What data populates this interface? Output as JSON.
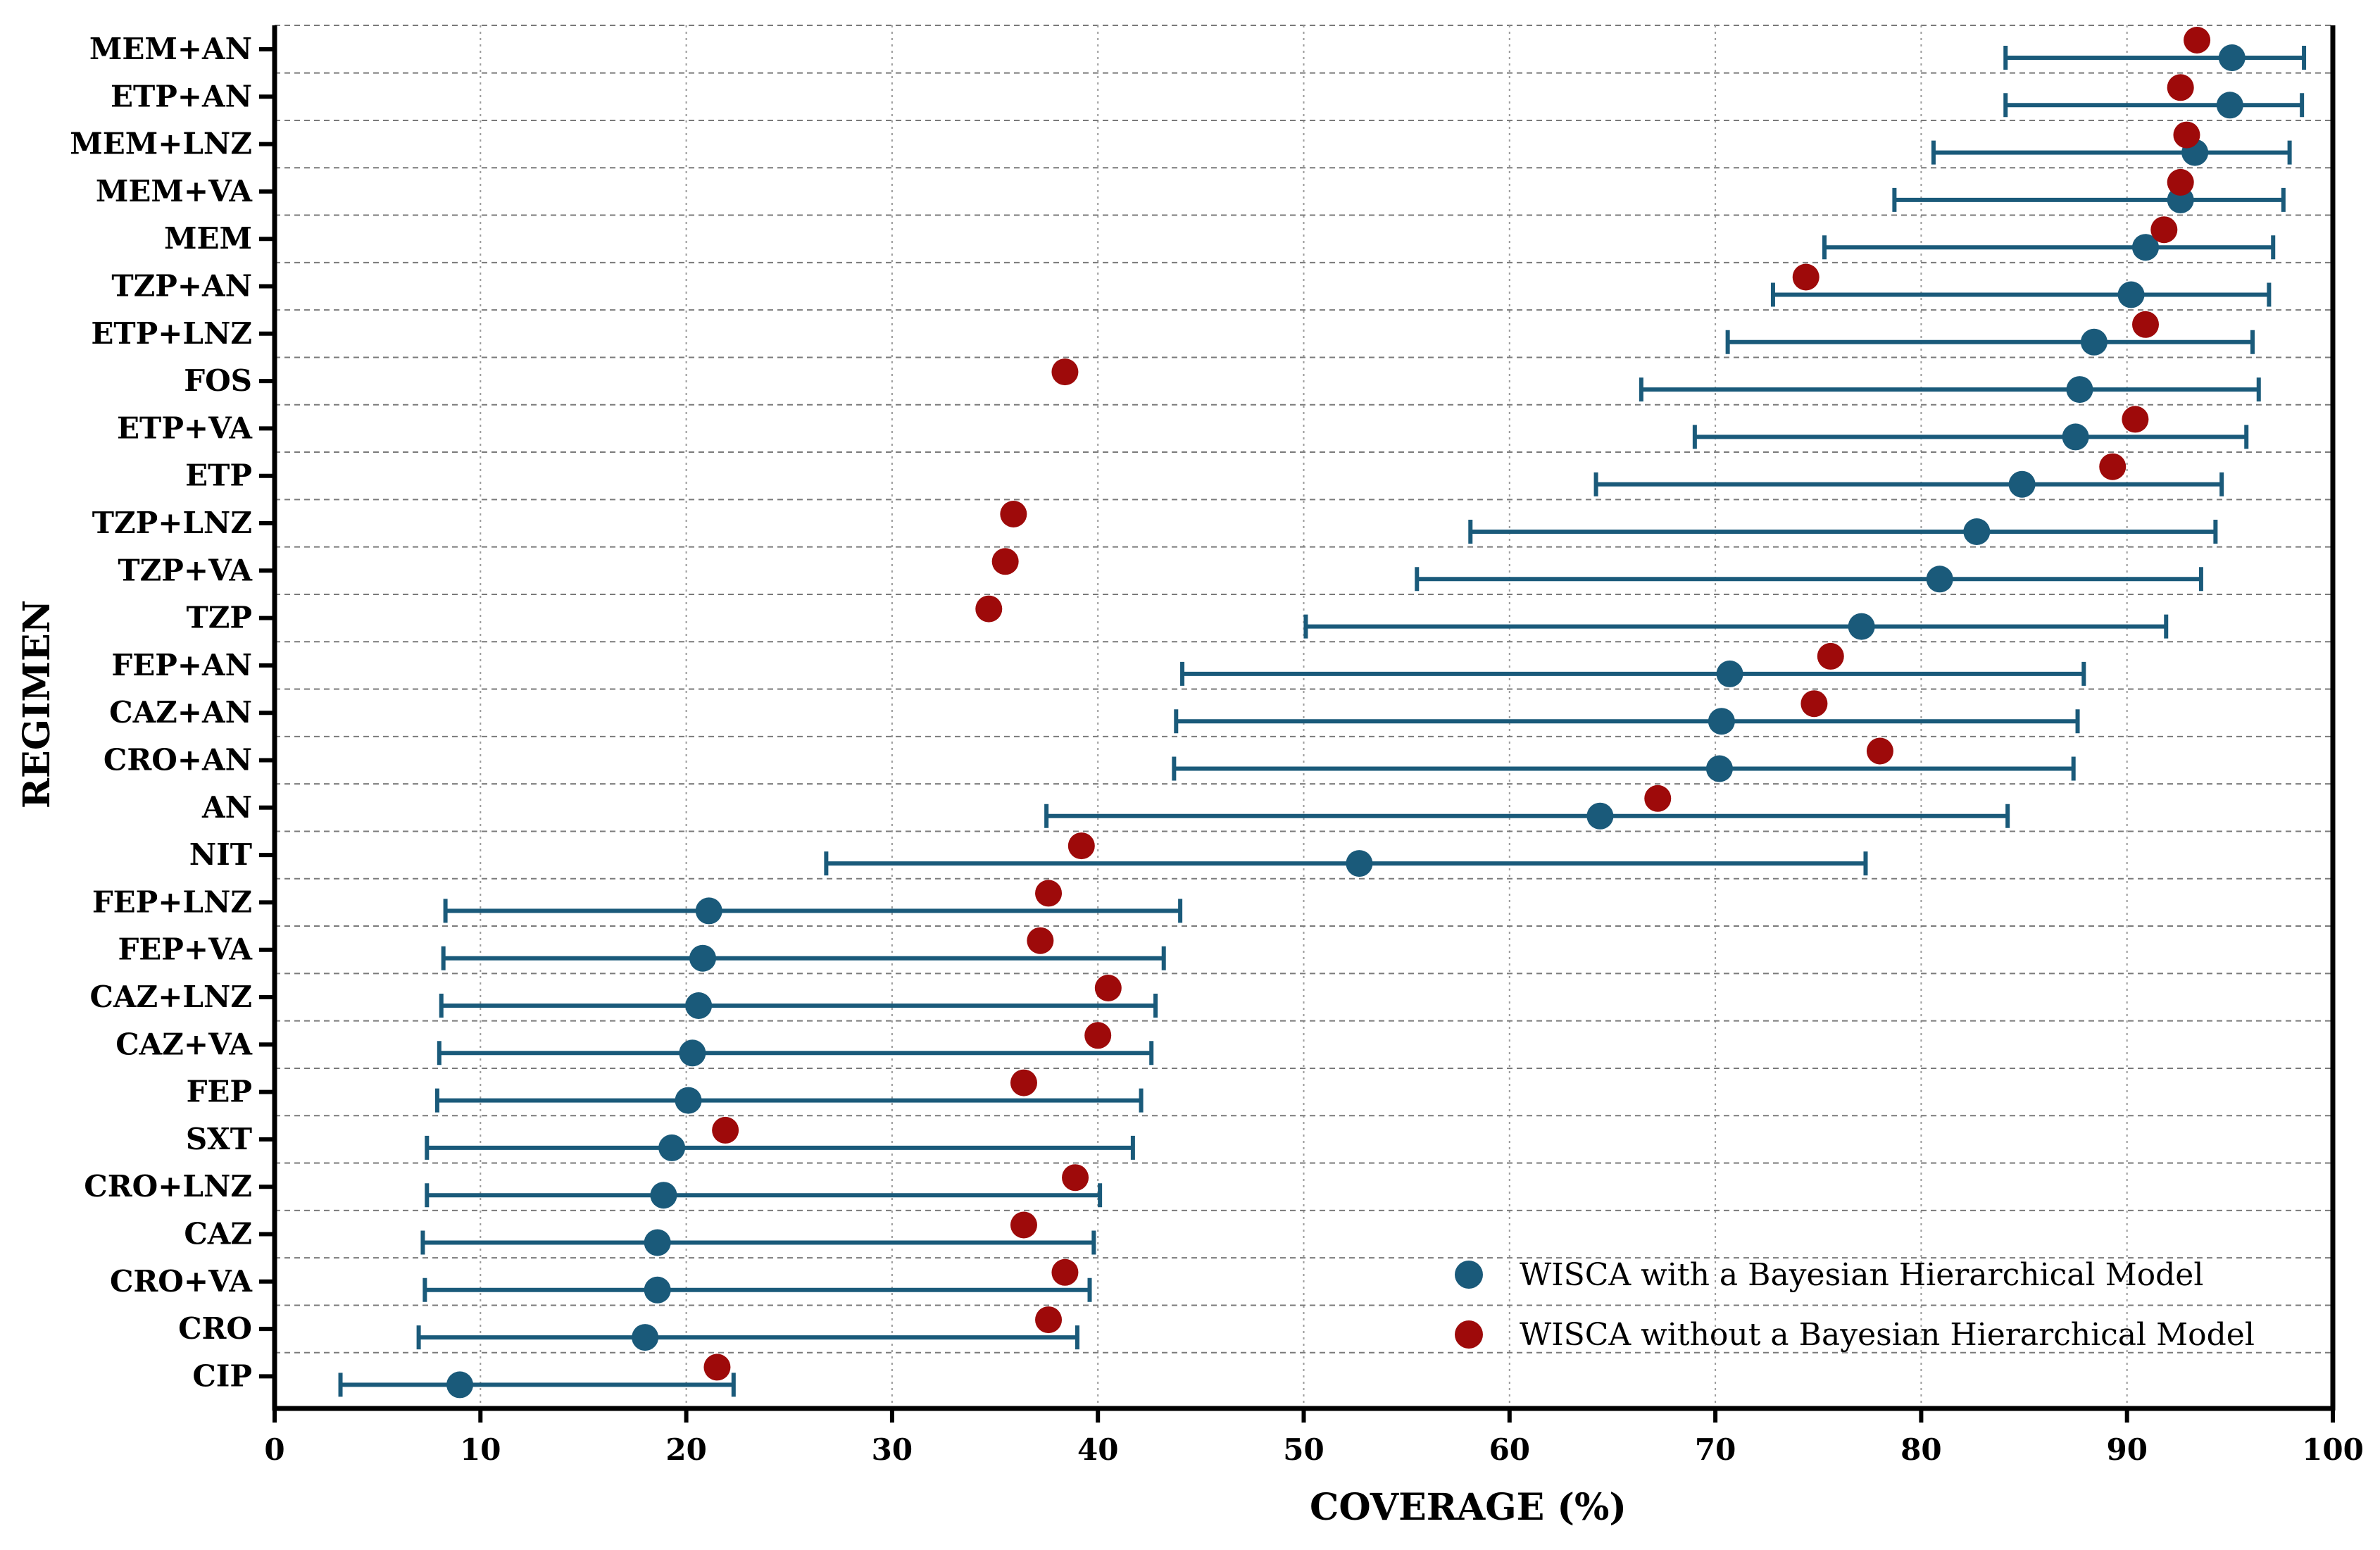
{
  "chart_data": {
    "type": "scatter",
    "title": "",
    "xlabel": "COVERAGE (%)",
    "ylabel": "REGIMEN",
    "xlim": [
      0,
      100
    ],
    "xticks": [
      0,
      10,
      20,
      30,
      40,
      50,
      60,
      70,
      80,
      90,
      100
    ],
    "grid": true,
    "legend_position": "bottom-right",
    "categories": [
      "MEM+AN",
      "ETP+AN",
      "MEM+LNZ",
      "MEM+VA",
      "MEM",
      "TZP+AN",
      "ETP+LNZ",
      "FOS",
      "ETP+VA",
      "ETP",
      "TZP+LNZ",
      "TZP+VA",
      "TZP",
      "FEP+AN",
      "CAZ+AN",
      "CRO+AN",
      "AN",
      "NIT",
      "FEP+LNZ",
      "FEP+VA",
      "CAZ+LNZ",
      "CAZ+VA",
      "FEP",
      "SXT",
      "CRO+LNZ",
      "CAZ",
      "CRO+VA",
      "CRO",
      "CIP"
    ],
    "series": [
      {
        "name": "WISCA with a Bayesian Hierarchical Model",
        "color": "#1a5a7a",
        "values": [
          95.1,
          95.0,
          93.3,
          92.6,
          90.9,
          90.2,
          88.4,
          87.7,
          87.5,
          84.9,
          82.7,
          80.9,
          77.1,
          70.7,
          70.3,
          70.2,
          64.4,
          52.7,
          21.1,
          20.8,
          20.6,
          20.3,
          20.1,
          19.3,
          18.9,
          18.6,
          18.6,
          18.0,
          9.0
        ],
        "ci_low": [
          84.1,
          84.1,
          80.6,
          78.7,
          75.3,
          72.8,
          70.6,
          66.4,
          69.0,
          64.2,
          58.1,
          55.5,
          50.1,
          44.1,
          43.8,
          43.7,
          37.5,
          26.8,
          8.3,
          8.2,
          8.1,
          8.0,
          7.9,
          7.4,
          7.4,
          7.2,
          7.3,
          7.0,
          3.2
        ],
        "ci_high": [
          98.6,
          98.5,
          97.9,
          97.6,
          97.1,
          96.9,
          96.1,
          96.4,
          95.8,
          94.6,
          94.3,
          93.6,
          91.9,
          87.9,
          87.6,
          87.4,
          84.2,
          77.3,
          44.0,
          43.2,
          42.8,
          42.6,
          42.1,
          41.7,
          40.1,
          39.8,
          39.6,
          39.0,
          22.3
        ]
      },
      {
        "name": "WISCA without a Bayesian Hierarchical Model",
        "color": "#9e0a0a",
        "values": [
          93.4,
          92.6,
          92.9,
          92.6,
          91.8,
          74.4,
          90.9,
          38.4,
          90.4,
          89.3,
          35.9,
          35.5,
          34.7,
          75.6,
          74.8,
          78.0,
          67.2,
          39.2,
          37.6,
          37.2,
          40.5,
          40.0,
          36.4,
          21.9,
          38.9,
          36.4,
          38.4,
          37.6,
          21.5
        ]
      }
    ]
  }
}
